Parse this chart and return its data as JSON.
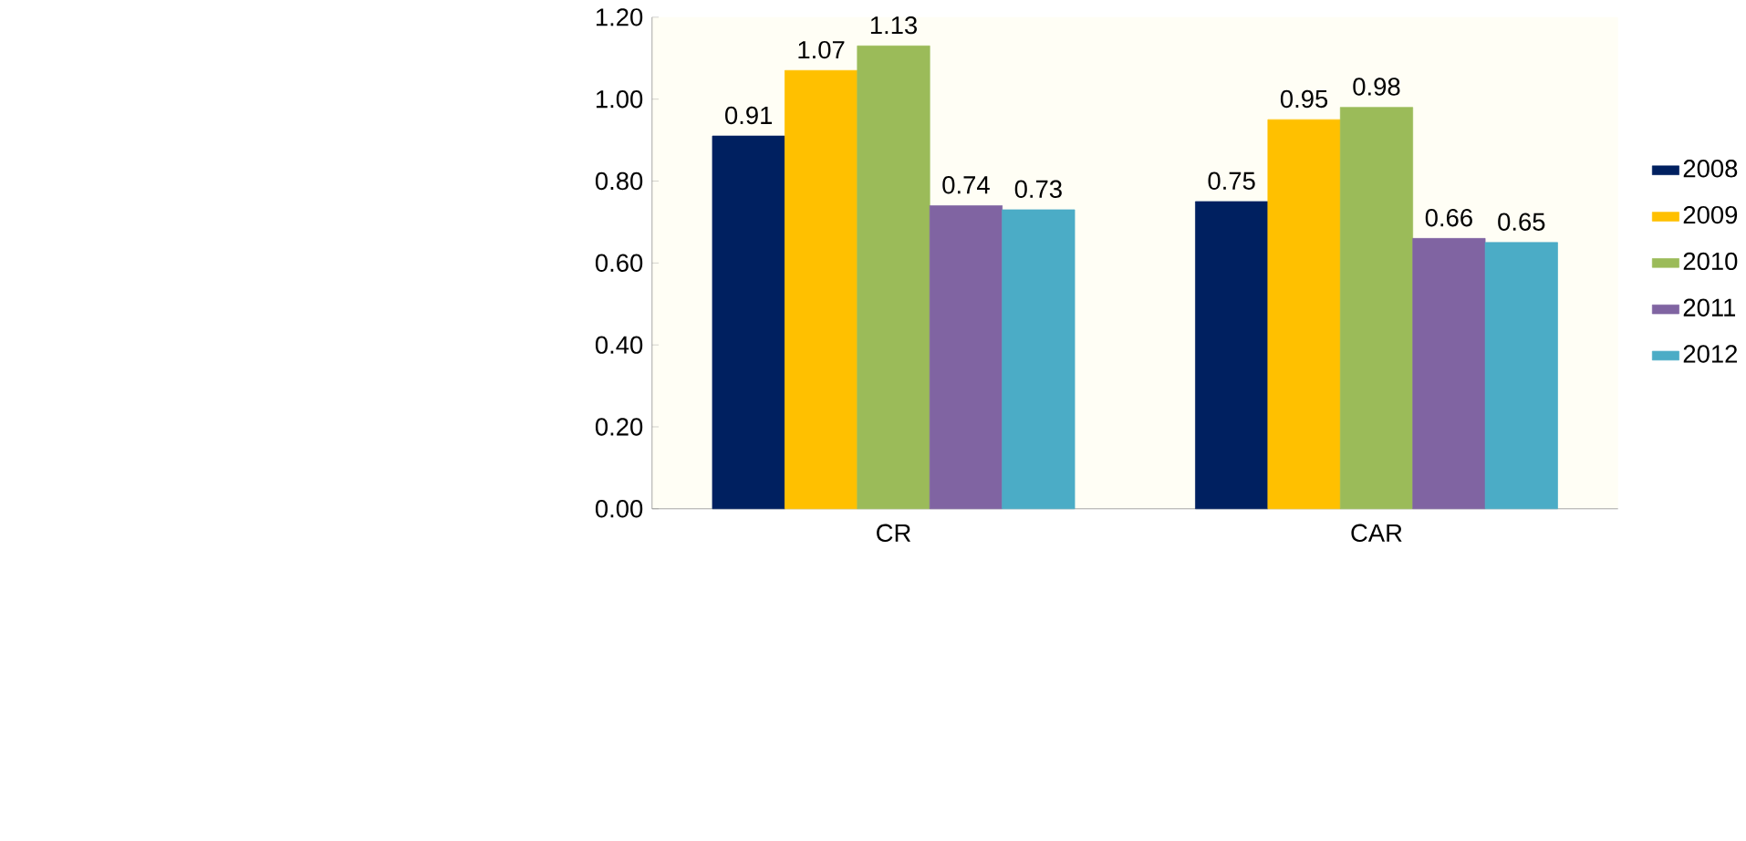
{
  "chart_data": {
    "type": "bar",
    "categories": [
      "CR",
      "CAR"
    ],
    "series": [
      {
        "name": "2008",
        "color": "#002060",
        "values": [
          0.91,
          0.75
        ]
      },
      {
        "name": "2009",
        "color": "#ffc000",
        "values": [
          1.07,
          0.95
        ]
      },
      {
        "name": "2010",
        "color": "#9bbb59",
        "values": [
          1.13,
          0.98
        ]
      },
      {
        "name": "2011",
        "color": "#8064a2",
        "values": [
          0.74,
          0.66
        ]
      },
      {
        "name": "2012",
        "color": "#4bacc6",
        "values": [
          0.73,
          0.65
        ]
      }
    ],
    "ylim": [
      0,
      1.2
    ],
    "yticks": [
      {
        "value": 0,
        "label": "0.00"
      },
      {
        "value": 0.2,
        "label": "0.20"
      },
      {
        "value": 0.4,
        "label": "0.40"
      },
      {
        "value": 0.6,
        "label": "0.60"
      },
      {
        "value": 0.8,
        "label": "0.80"
      },
      {
        "value": 1.0,
        "label": "1.00"
      },
      {
        "value": 1.2,
        "label": "1.20"
      }
    ],
    "data_labels": true,
    "legend": "right",
    "grid": false
  }
}
